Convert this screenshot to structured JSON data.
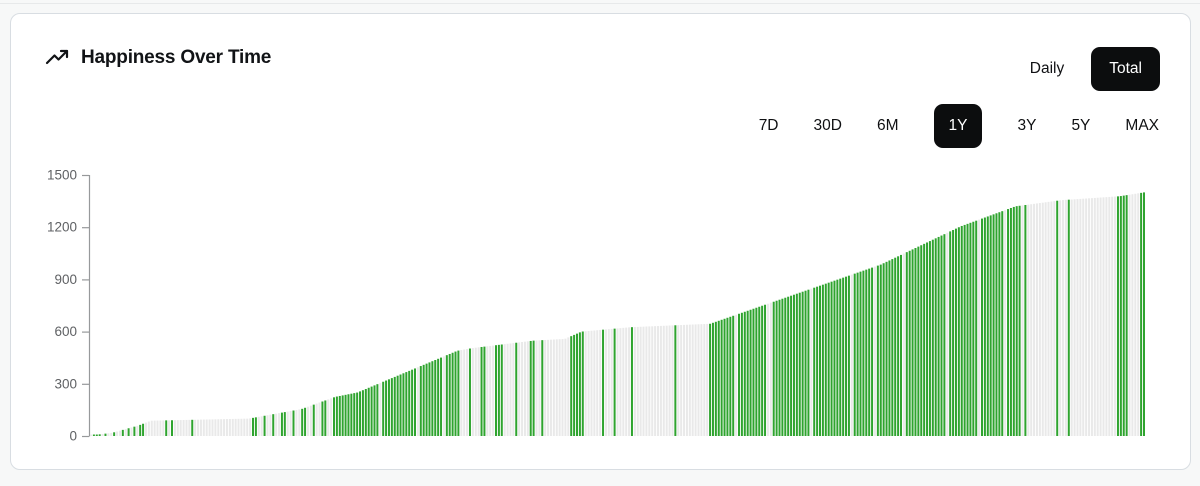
{
  "card": {
    "title": "Happiness Over Time",
    "title_icon": "trending-up-icon"
  },
  "view_toggle": {
    "options": [
      {
        "label": "Daily",
        "active": false
      },
      {
        "label": "Total",
        "active": true
      }
    ]
  },
  "range_selector": {
    "options": [
      {
        "label": "7D",
        "active": false
      },
      {
        "label": "30D",
        "active": false
      },
      {
        "label": "6M",
        "active": false
      },
      {
        "label": "1Y",
        "active": true
      },
      {
        "label": "3Y",
        "active": false
      },
      {
        "label": "5Y",
        "active": false
      },
      {
        "label": "MAX",
        "active": false
      }
    ]
  },
  "colors": {
    "active_pill_bg": "#0c0d0e",
    "active_pill_text": "#ffffff",
    "bar_green": "#2fa42f",
    "bar_gray": "#e9e9e9",
    "axis_line": "#97999b",
    "axis_label": "#5f6164",
    "card_border": "#d8dde2",
    "card_bg": "#ffffff",
    "page_bg": "#f7f8f8"
  },
  "chart_data": {
    "type": "bar",
    "title": "Happiness Over Time",
    "selected_view": "Total",
    "selected_range": "1Y",
    "n_bars": 365,
    "ylim": [
      0,
      1500
    ],
    "yticks": [
      0,
      300,
      600,
      900,
      1200,
      1500
    ],
    "grid": false,
    "legend": "none",
    "bar_color_rule": "green = days the cumulative total increased, gray = flat days",
    "envelope_points": [
      [
        0.0,
        4
      ],
      [
        0.02,
        18
      ],
      [
        0.045,
        60
      ],
      [
        0.057,
        88
      ],
      [
        0.15,
        100
      ],
      [
        0.2,
        155
      ],
      [
        0.232,
        225
      ],
      [
        0.253,
        250
      ],
      [
        0.348,
        490
      ],
      [
        0.362,
        505
      ],
      [
        0.42,
        548
      ],
      [
        0.45,
        558
      ],
      [
        0.466,
        600
      ],
      [
        0.512,
        625
      ],
      [
        0.588,
        645
      ],
      [
        0.75,
        985
      ],
      [
        0.826,
        1205
      ],
      [
        0.878,
        1320
      ],
      [
        0.921,
        1355
      ],
      [
        0.977,
        1378
      ],
      [
        1.0,
        1400
      ]
    ],
    "green_index_ranges": [
      [
        1,
        3
      ],
      [
        5,
        5
      ],
      [
        8,
        8
      ],
      [
        11,
        11
      ],
      [
        13,
        13
      ],
      [
        15,
        15
      ],
      [
        17,
        18
      ],
      [
        26,
        26
      ],
      [
        28,
        28
      ],
      [
        35,
        35
      ],
      [
        56,
        57
      ],
      [
        60,
        60
      ],
      [
        63,
        63
      ],
      [
        66,
        67
      ],
      [
        70,
        70
      ],
      [
        73,
        74
      ],
      [
        77,
        77
      ],
      [
        80,
        81
      ],
      [
        84,
        99
      ],
      [
        101,
        112
      ],
      [
        114,
        121
      ],
      [
        123,
        127
      ],
      [
        131,
        131
      ],
      [
        135,
        136
      ],
      [
        140,
        142
      ],
      [
        147,
        147
      ],
      [
        152,
        153
      ],
      [
        156,
        156
      ],
      [
        166,
        170
      ],
      [
        177,
        177
      ],
      [
        181,
        181
      ],
      [
        187,
        187
      ],
      [
        202,
        202
      ],
      [
        214,
        222
      ],
      [
        224,
        233
      ],
      [
        236,
        248
      ],
      [
        250,
        262
      ],
      [
        264,
        270
      ],
      [
        272,
        280
      ],
      [
        282,
        295
      ],
      [
        297,
        306
      ],
      [
        308,
        315
      ],
      [
        317,
        321
      ],
      [
        323,
        323
      ],
      [
        334,
        334
      ],
      [
        338,
        338
      ],
      [
        355,
        358
      ],
      [
        363,
        364
      ]
    ]
  }
}
